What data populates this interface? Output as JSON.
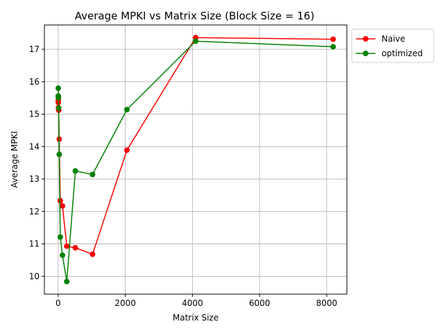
{
  "chart_data": {
    "type": "line",
    "title": "Average MPKI vs Matrix Size (Block Size = 16)",
    "xlabel": "Matrix Size",
    "ylabel": "Average MPKI",
    "xlim": [
      -410,
      8602
    ],
    "ylim": [
      9.45,
      17.75
    ],
    "xticks": [
      0,
      2000,
      4000,
      6000,
      8000
    ],
    "yticks": [
      10,
      11,
      12,
      13,
      14,
      15,
      16,
      17
    ],
    "grid": true,
    "legend_position": "upper left, outside right",
    "series": [
      {
        "name": "Naive",
        "color": "#ff0000",
        "x": [
          2,
          4,
          8,
          16,
          32,
          64,
          128,
          256,
          512,
          1024,
          2048,
          4096,
          8192
        ],
        "y": [
          15.42,
          15.36,
          15.2,
          15.12,
          14.23,
          12.33,
          12.17,
          10.93,
          10.88,
          10.68,
          13.89,
          17.36,
          17.31
        ]
      },
      {
        "name": "optimized",
        "color": "#008000",
        "x": [
          2,
          4,
          8,
          16,
          32,
          64,
          128,
          256,
          512,
          1024,
          2048,
          4096,
          8192
        ],
        "y": [
          15.8,
          15.56,
          15.51,
          15.19,
          13.76,
          11.21,
          10.65,
          9.84,
          13.25,
          13.14,
          15.14,
          17.25,
          17.08
        ]
      }
    ]
  }
}
